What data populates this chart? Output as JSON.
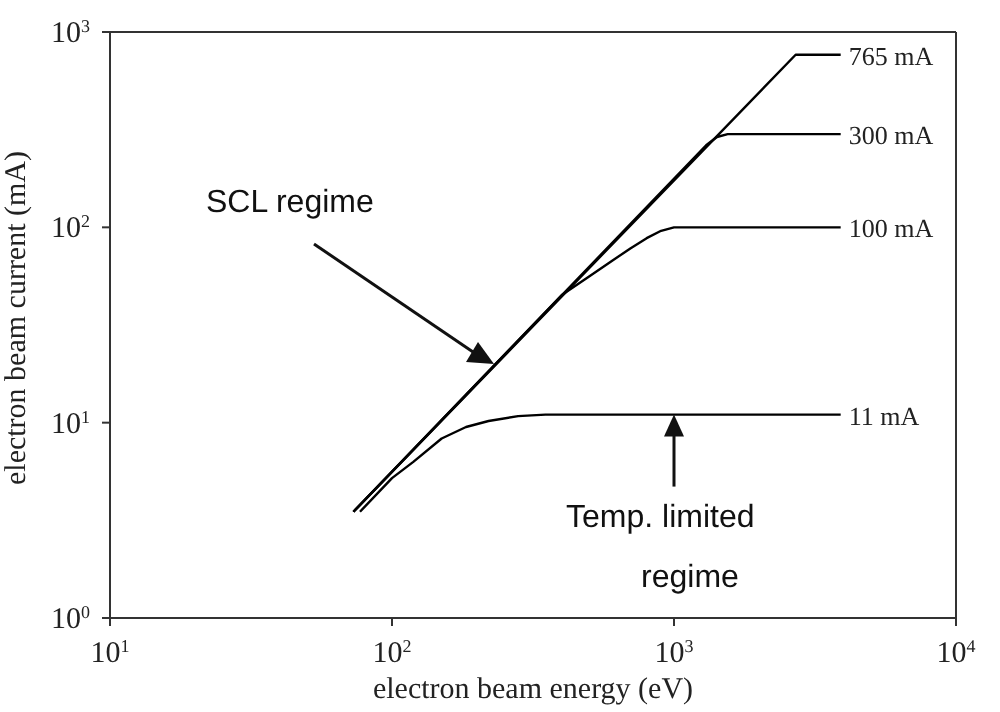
{
  "chart_data": {
    "type": "line",
    "xlabel": "electron beam energy (eV)",
    "ylabel": "electron beam current (mA)",
    "log": "xy",
    "xlim": [
      10,
      10000
    ],
    "ylim": [
      1,
      1000
    ],
    "xticks": [
      {
        "value": 10,
        "label": "10$^{1}$"
      },
      {
        "value": 100,
        "label": "10$^{2}$"
      },
      {
        "value": 1000,
        "label": "10$^{3}$"
      },
      {
        "value": 10000,
        "label": "10$^{4}$"
      }
    ],
    "yticks": [
      {
        "value": 1,
        "label": "10$^{0}$"
      },
      {
        "value": 10,
        "label": "10$^{1}$"
      },
      {
        "value": 100,
        "label": "10$^{2}$"
      },
      {
        "value": 1000,
        "label": "10$^{3}$"
      }
    ],
    "grid": false,
    "legend": false,
    "marker": "none",
    "line_style": "solid",
    "series": [
      {
        "name": "765 mA",
        "color": "#000000",
        "x": [
          73,
          2700,
          3900
        ],
        "values": [
          3.5,
          765,
          765
        ]
      },
      {
        "name": "300 mA",
        "color": "#000000",
        "x": [
          73,
          1300,
          1420,
          1550,
          3900
        ],
        "values": [
          3.5,
          263,
          290,
          300,
          300
        ]
      },
      {
        "name": "100 mA",
        "color": "#000000",
        "x": [
          73,
          400,
          500,
          600,
          700,
          800,
          900,
          1000,
          3900
        ],
        "values": [
          3.5,
          45,
          56,
          67,
          78,
          88,
          96,
          100,
          100
        ]
      },
      {
        "name": "11 mA",
        "color": "#000000",
        "x": [
          77,
          100,
          119,
          150,
          183,
          220,
          280,
          350,
          3900
        ],
        "values": [
          3.5,
          5.2,
          6.3,
          8.3,
          9.5,
          10.2,
          10.8,
          11,
          11
        ]
      }
    ],
    "annotations": [
      "SCL regime",
      {
        "text": "Temp. limited regime",
        "x": 1000,
        "y": 11
      }
    ]
  }
}
